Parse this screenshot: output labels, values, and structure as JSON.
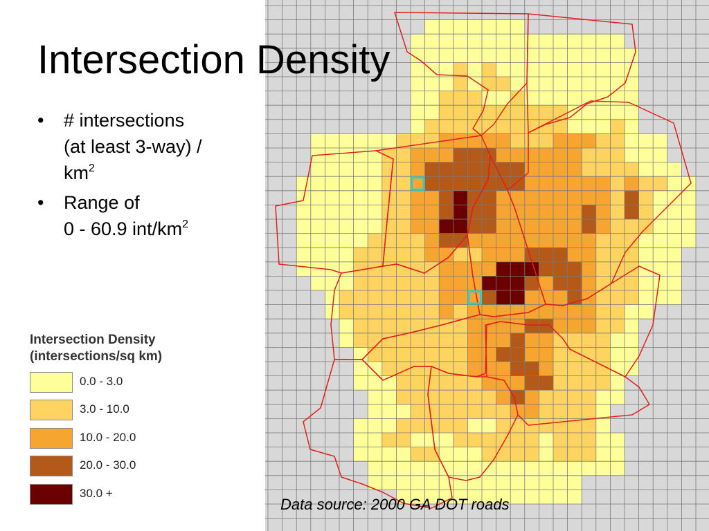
{
  "title": "Intersection Density",
  "bullets": [
    {
      "lines": [
        "# intersections",
        "(at least 3-way) /",
        "km"
      ],
      "sup": "2"
    },
    {
      "lines": [
        "Range of",
        "0 - 60.9 int/km"
      ],
      "sup": "2"
    }
  ],
  "legend": {
    "title_line1": "Intersection Density",
    "title_line2": "(intersections/sq km)",
    "classes": [
      {
        "label": "0.0 - 3.0",
        "color": "#ffff99"
      },
      {
        "label": "3.0 - 10.0",
        "color": "#fed35f"
      },
      {
        "label": "10.0 - 20.0",
        "color": "#f6a630"
      },
      {
        "label": "20.0 - 30.0",
        "color": "#b35a1b"
      },
      {
        "label": "30.0 +",
        "color": "#6b0000"
      }
    ]
  },
  "source": "Data source: 2000 GA DOT roads",
  "colors": {
    "grid_background": "#d8d8d8",
    "grid_line": "#7a7a7a",
    "boundary": "#e0201c",
    "highlight": "#36c9c9"
  }
}
